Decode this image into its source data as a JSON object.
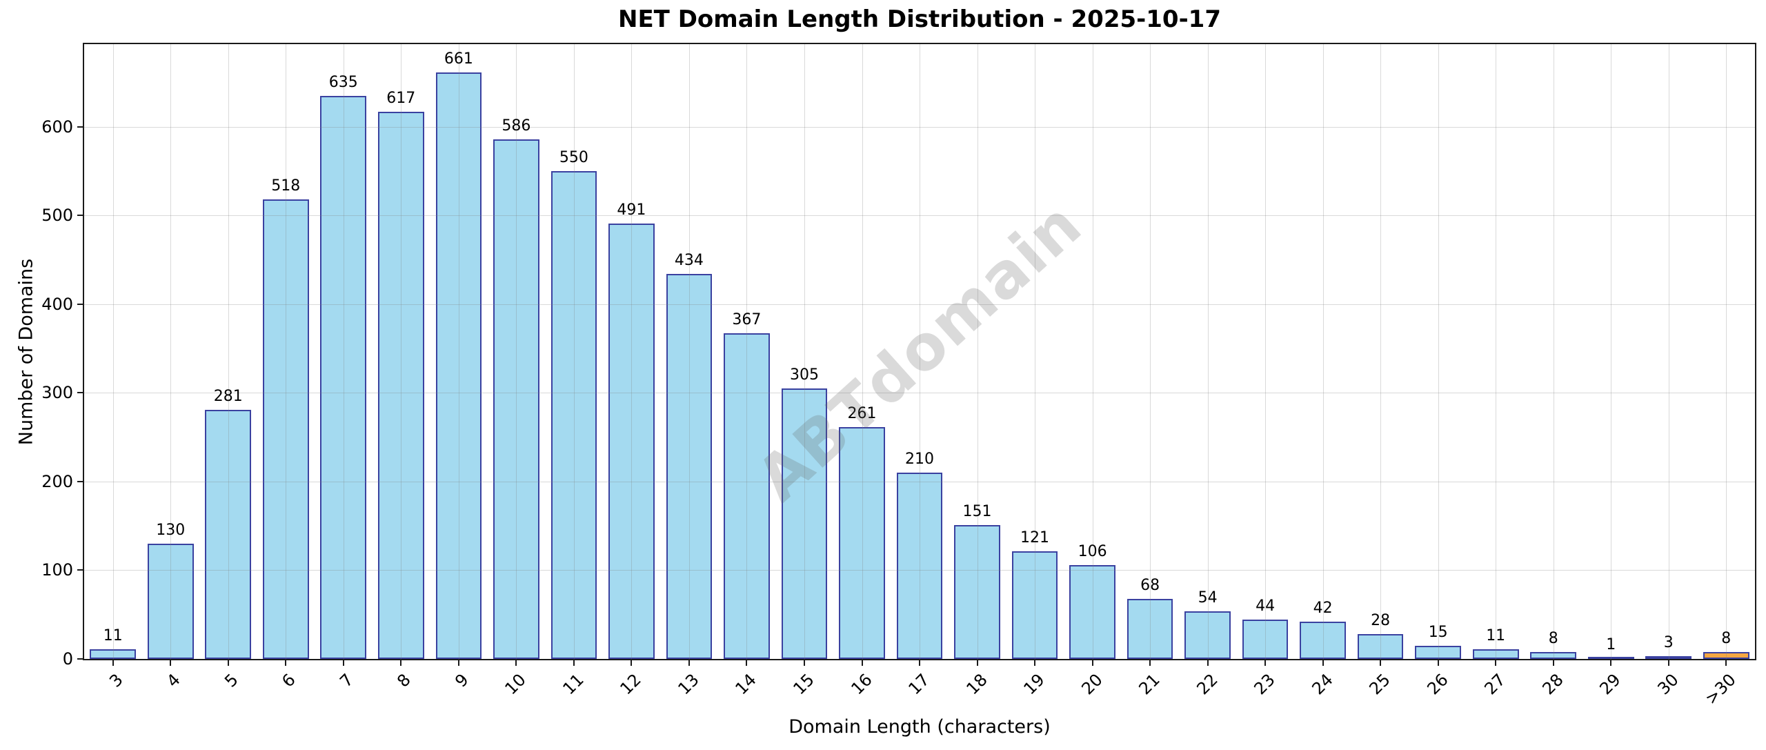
{
  "chart_data": {
    "type": "bar",
    "title": "NET Domain Length Distribution - 2025-10-17",
    "xlabel": "Domain Length (characters)",
    "ylabel": "Number of Domains",
    "categories": [
      "3",
      "4",
      "5",
      "6",
      "7",
      "8",
      "9",
      "10",
      "11",
      "12",
      "13",
      "14",
      "15",
      "16",
      "17",
      "18",
      "19",
      "20",
      "21",
      "22",
      "23",
      "24",
      "25",
      "26",
      "27",
      "28",
      "29",
      "30",
      ">30"
    ],
    "values": [
      11,
      130,
      281,
      518,
      635,
      617,
      661,
      586,
      550,
      491,
      434,
      367,
      305,
      261,
      210,
      151,
      121,
      106,
      68,
      54,
      44,
      42,
      28,
      15,
      11,
      8,
      1,
      3,
      8
    ],
    "yticks": [
      0,
      100,
      200,
      300,
      400,
      500,
      600
    ],
    "ylim": [
      0,
      693
    ],
    "grid": true,
    "legend_position": "none",
    "bar_color": "#A4DAF0",
    "bar_edge_color": "#3A41A0",
    "last_bar_color": "#F5A742",
    "watermark": "ABTdomain"
  }
}
